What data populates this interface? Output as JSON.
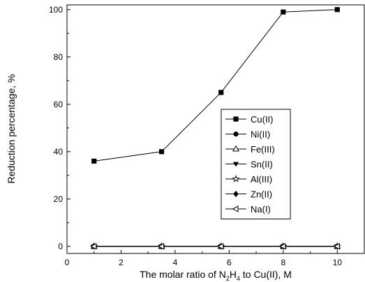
{
  "chart_data": {
    "type": "line",
    "title": "",
    "xlabel": "The molar ratio of N₂H₄ to Cu(II), M",
    "xlabel_parts": [
      "The molar ratio of N",
      "2",
      "H",
      "4",
      " to Cu(II), M"
    ],
    "ylabel": "Reduction percentage, %",
    "xlim": [
      0,
      11
    ],
    "ylim": [
      -3,
      102
    ],
    "xticks": [
      0,
      2,
      4,
      6,
      8,
      10
    ],
    "yticks": [
      0,
      20,
      40,
      60,
      80,
      100
    ],
    "legend_position": "center-right",
    "x": [
      1,
      3.5,
      5.7,
      8,
      10
    ],
    "series": [
      {
        "name": "Cu(II)",
        "marker": "square",
        "values": [
          36,
          40,
          65,
          99,
          100
        ]
      },
      {
        "name": "Ni(II)",
        "marker": "circle",
        "values": [
          0,
          0,
          0,
          0,
          0
        ]
      },
      {
        "name": "Fe(III)",
        "marker": "triangle-up-open",
        "values": [
          0,
          0,
          0,
          0,
          0
        ]
      },
      {
        "name": "Sn(II)",
        "marker": "triangle-down",
        "values": [
          0,
          0,
          0,
          0,
          0
        ]
      },
      {
        "name": "Al(III)",
        "marker": "star-open",
        "values": [
          0,
          0,
          0,
          0,
          0
        ]
      },
      {
        "name": "Zn(II)",
        "marker": "diamond",
        "values": [
          0,
          0,
          0,
          0,
          0
        ]
      },
      {
        "name": "Na(I)",
        "marker": "triangle-left-open",
        "values": [
          0,
          0,
          0,
          0,
          0
        ]
      }
    ],
    "colors": {
      "line": "#000000",
      "background": "#ffffff"
    }
  }
}
